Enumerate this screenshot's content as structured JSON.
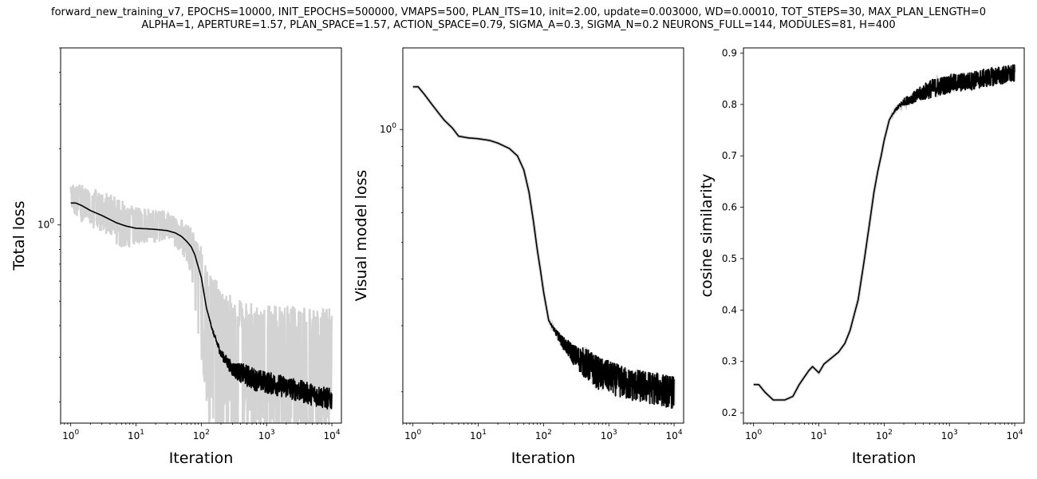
{
  "title": {
    "line1": "forward_new_training_v7, EPOCHS=10000, INIT_EPOCHS=500000, VMAPS=500, PLAN_ITS=10, init=2.00, update=0.003000, WD=0.00010, TOT_STEPS=30, MAX_PLAN_LENGTH=0",
    "line2": "ALPHA=1, APERTURE=1.57, PLAN_SPACE=1.57, ACTION_SPACE=0.79, SIGMA_A=0.3, SIGMA_N=0.2 NEURONS_FULL=144, MODULES=81, H=400"
  },
  "colors": {
    "mean_line": "#000000",
    "band": "#d3d3d3"
  },
  "chart_data": [
    {
      "type": "line",
      "xlabel": "Iteration",
      "ylabel": "Total loss",
      "xscale": "log",
      "yscale": "log",
      "xlim": [
        0.7,
        14000
      ],
      "ylim": [
        0.165,
        5.0
      ],
      "xticks": [
        1,
        10,
        100,
        1000,
        10000
      ],
      "xtick_labels": [
        "10^0",
        "10^1",
        "10^2",
        "10^3",
        "10^4"
      ],
      "yticks": [
        1
      ],
      "ytick_labels": [
        "10^0"
      ],
      "grid": false,
      "series": [
        {
          "role": "band",
          "x": [
            1,
            2,
            3,
            5,
            7,
            10,
            20,
            30,
            50,
            70,
            100,
            130,
            200,
            300,
            500,
            1000,
            2000,
            5000,
            10000
          ],
          "lower": [
            1.08,
            0.98,
            0.94,
            0.82,
            0.8,
            0.84,
            0.85,
            0.87,
            0.76,
            0.6,
            0.3,
            0.12,
            0.12,
            0.12,
            0.11,
            0.11,
            0.11,
            0.11,
            0.11
          ],
          "upper": [
            1.45,
            1.43,
            1.36,
            1.3,
            1.24,
            1.18,
            1.15,
            1.12,
            1.05,
            0.98,
            0.82,
            0.65,
            0.58,
            0.52,
            0.5,
            0.49,
            0.48,
            0.47,
            0.47
          ]
        },
        {
          "role": "mean",
          "x": [
            1,
            1.2,
            1.5,
            2,
            3,
            5,
            7,
            10,
            15,
            20,
            30,
            40,
            50,
            60,
            70,
            80,
            100,
            120,
            150,
            200,
            300,
            500,
            700,
            1000,
            2000,
            5000,
            10000
          ],
          "y": [
            1.22,
            1.22,
            1.19,
            1.14,
            1.09,
            1.02,
            0.99,
            0.97,
            0.965,
            0.96,
            0.95,
            0.93,
            0.9,
            0.86,
            0.82,
            0.76,
            0.62,
            0.47,
            0.38,
            0.31,
            0.27,
            0.255,
            0.245,
            0.24,
            0.23,
            0.215,
            0.205
          ]
        }
      ]
    },
    {
      "type": "line",
      "xlabel": "Iteration",
      "ylabel": "Visual model loss",
      "xscale": "log",
      "yscale": "log",
      "xlim": [
        0.7,
        14000
      ],
      "ylim": [
        0.165,
        1.65
      ],
      "xticks": [
        1,
        10,
        100,
        1000,
        10000
      ],
      "xtick_labels": [
        "10^0",
        "10^1",
        "10^2",
        "10^3",
        "10^4"
      ],
      "yticks": [
        1
      ],
      "ytick_labels": [
        "10^0"
      ],
      "grid": false,
      "series": [
        {
          "role": "mean",
          "x": [
            1,
            1.2,
            1.5,
            2,
            3,
            4,
            5,
            7,
            10,
            15,
            20,
            30,
            40,
            50,
            60,
            70,
            80,
            90,
            100,
            120,
            150,
            200,
            300,
            500,
            700,
            1000,
            2000,
            5000,
            10000
          ],
          "y": [
            1.3,
            1.3,
            1.24,
            1.16,
            1.06,
            1.01,
            0.96,
            0.95,
            0.945,
            0.935,
            0.92,
            0.89,
            0.85,
            0.78,
            0.68,
            0.57,
            0.48,
            0.42,
            0.37,
            0.31,
            0.29,
            0.27,
            0.25,
            0.235,
            0.225,
            0.22,
            0.21,
            0.205,
            0.2
          ]
        }
      ]
    },
    {
      "type": "line",
      "xlabel": "Iteration",
      "ylabel": "cosine similarity",
      "xscale": "log",
      "yscale": "linear",
      "xlim": [
        0.7,
        14000
      ],
      "ylim": [
        0.18,
        0.91
      ],
      "xticks": [
        1,
        10,
        100,
        1000,
        10000
      ],
      "xtick_labels": [
        "10^0",
        "10^1",
        "10^2",
        "10^3",
        "10^4"
      ],
      "yticks": [
        0.2,
        0.3,
        0.4,
        0.5,
        0.6,
        0.7,
        0.8,
        0.9
      ],
      "ytick_labels": [
        "0.2",
        "0.3",
        "0.4",
        "0.5",
        "0.6",
        "0.7",
        "0.8",
        "0.9"
      ],
      "grid": false,
      "series": [
        {
          "role": "mean",
          "x": [
            1,
            1.2,
            1.5,
            2,
            3,
            4,
            5,
            7,
            8,
            10,
            12,
            15,
            20,
            25,
            30,
            40,
            50,
            60,
            70,
            80,
            90,
            100,
            120,
            150,
            200,
            300,
            500,
            1000,
            2000,
            5000,
            10000
          ],
          "y": [
            0.255,
            0.255,
            0.24,
            0.225,
            0.225,
            0.232,
            0.255,
            0.282,
            0.29,
            0.278,
            0.295,
            0.305,
            0.318,
            0.335,
            0.36,
            0.42,
            0.5,
            0.57,
            0.63,
            0.67,
            0.7,
            0.73,
            0.77,
            0.79,
            0.805,
            0.815,
            0.83,
            0.84,
            0.845,
            0.855,
            0.86
          ]
        }
      ]
    }
  ]
}
